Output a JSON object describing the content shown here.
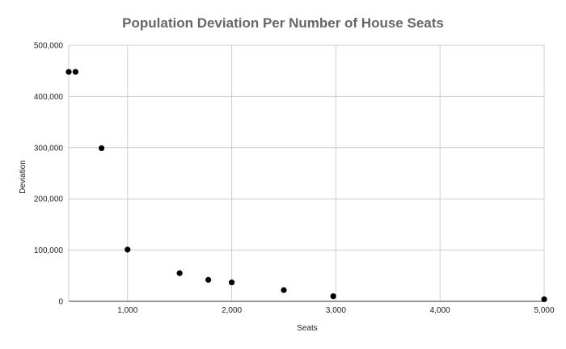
{
  "chart_data": {
    "type": "scatter",
    "title": "Population Deviation Per Number of House Seats",
    "xlabel": "Seats",
    "ylabel": "Deviation",
    "xlim": [
      435,
      5000
    ],
    "ylim": [
      0,
      500000
    ],
    "x_ticks": [
      1000,
      2000,
      3000,
      4000,
      5000
    ],
    "x_tick_labels": [
      "1,000",
      "2,000",
      "3,000",
      "4,000",
      "5,000"
    ],
    "y_ticks": [
      0,
      100000,
      200000,
      300000,
      400000,
      500000
    ],
    "y_tick_labels": [
      "0",
      "100,000",
      "200,000",
      "300,000",
      "400,000",
      "500,000"
    ],
    "grid": true,
    "legend": "none",
    "marker_color": "#000000",
    "series": [
      {
        "points": [
          {
            "x": 435,
            "y": 448000
          },
          {
            "x": 500,
            "y": 448000
          },
          {
            "x": 750,
            "y": 299000
          },
          {
            "x": 1000,
            "y": 101000
          },
          {
            "x": 1500,
            "y": 55000
          },
          {
            "x": 1775,
            "y": 42000
          },
          {
            "x": 2000,
            "y": 37000
          },
          {
            "x": 2500,
            "y": 22000
          },
          {
            "x": 2975,
            "y": 10000
          },
          {
            "x": 5000,
            "y": 4000
          }
        ]
      }
    ]
  }
}
